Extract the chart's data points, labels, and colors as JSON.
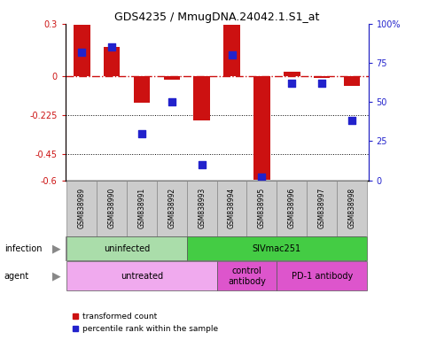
{
  "title": "GDS4235 / MmugDNA.24042.1.S1_at",
  "samples": [
    "GSM838989",
    "GSM838990",
    "GSM838991",
    "GSM838992",
    "GSM838993",
    "GSM838994",
    "GSM838995",
    "GSM838996",
    "GSM838997",
    "GSM838998"
  ],
  "red_bars": [
    0.295,
    0.165,
    -0.155,
    -0.02,
    -0.255,
    0.295,
    -0.595,
    0.025,
    -0.01,
    -0.055
  ],
  "blue_squares": [
    82,
    85,
    30,
    50,
    10,
    80,
    2,
    62,
    62,
    38
  ],
  "ylim_left": [
    -0.6,
    0.3
  ],
  "ylim_right": [
    0,
    100
  ],
  "yticks_left": [
    0.3,
    0,
    -0.225,
    -0.45,
    -0.6
  ],
  "yticks_left_labels": [
    "0.3",
    "0",
    "-0.225",
    "-0.45",
    "-0.6"
  ],
  "yticks_right": [
    100,
    75,
    50,
    25,
    0
  ],
  "yticks_right_labels": [
    "100%",
    "75",
    "50",
    "25",
    "0"
  ],
  "hlines_dotted": [
    -0.225,
    -0.45
  ],
  "bar_color": "#cc1111",
  "square_color": "#2222cc",
  "zero_line_color": "#cc1111",
  "infection_groups": [
    {
      "label": "uninfected",
      "start": 0,
      "end": 4,
      "color": "#aaddaa"
    },
    {
      "label": "SIVmac251",
      "start": 4,
      "end": 10,
      "color": "#44cc44"
    }
  ],
  "agent_groups": [
    {
      "label": "untreated",
      "start": 0,
      "end": 5,
      "color": "#f0aaee"
    },
    {
      "label": "control\nantibody",
      "start": 5,
      "end": 7,
      "color": "#dd55cc"
    },
    {
      "label": "PD-1 antibody",
      "start": 7,
      "end": 10,
      "color": "#dd55cc"
    }
  ],
  "legend_red": "transformed count",
  "legend_blue": "percentile rank within the sample",
  "row_label_infection": "infection",
  "row_label_agent": "agent",
  "bar_width": 0.55
}
